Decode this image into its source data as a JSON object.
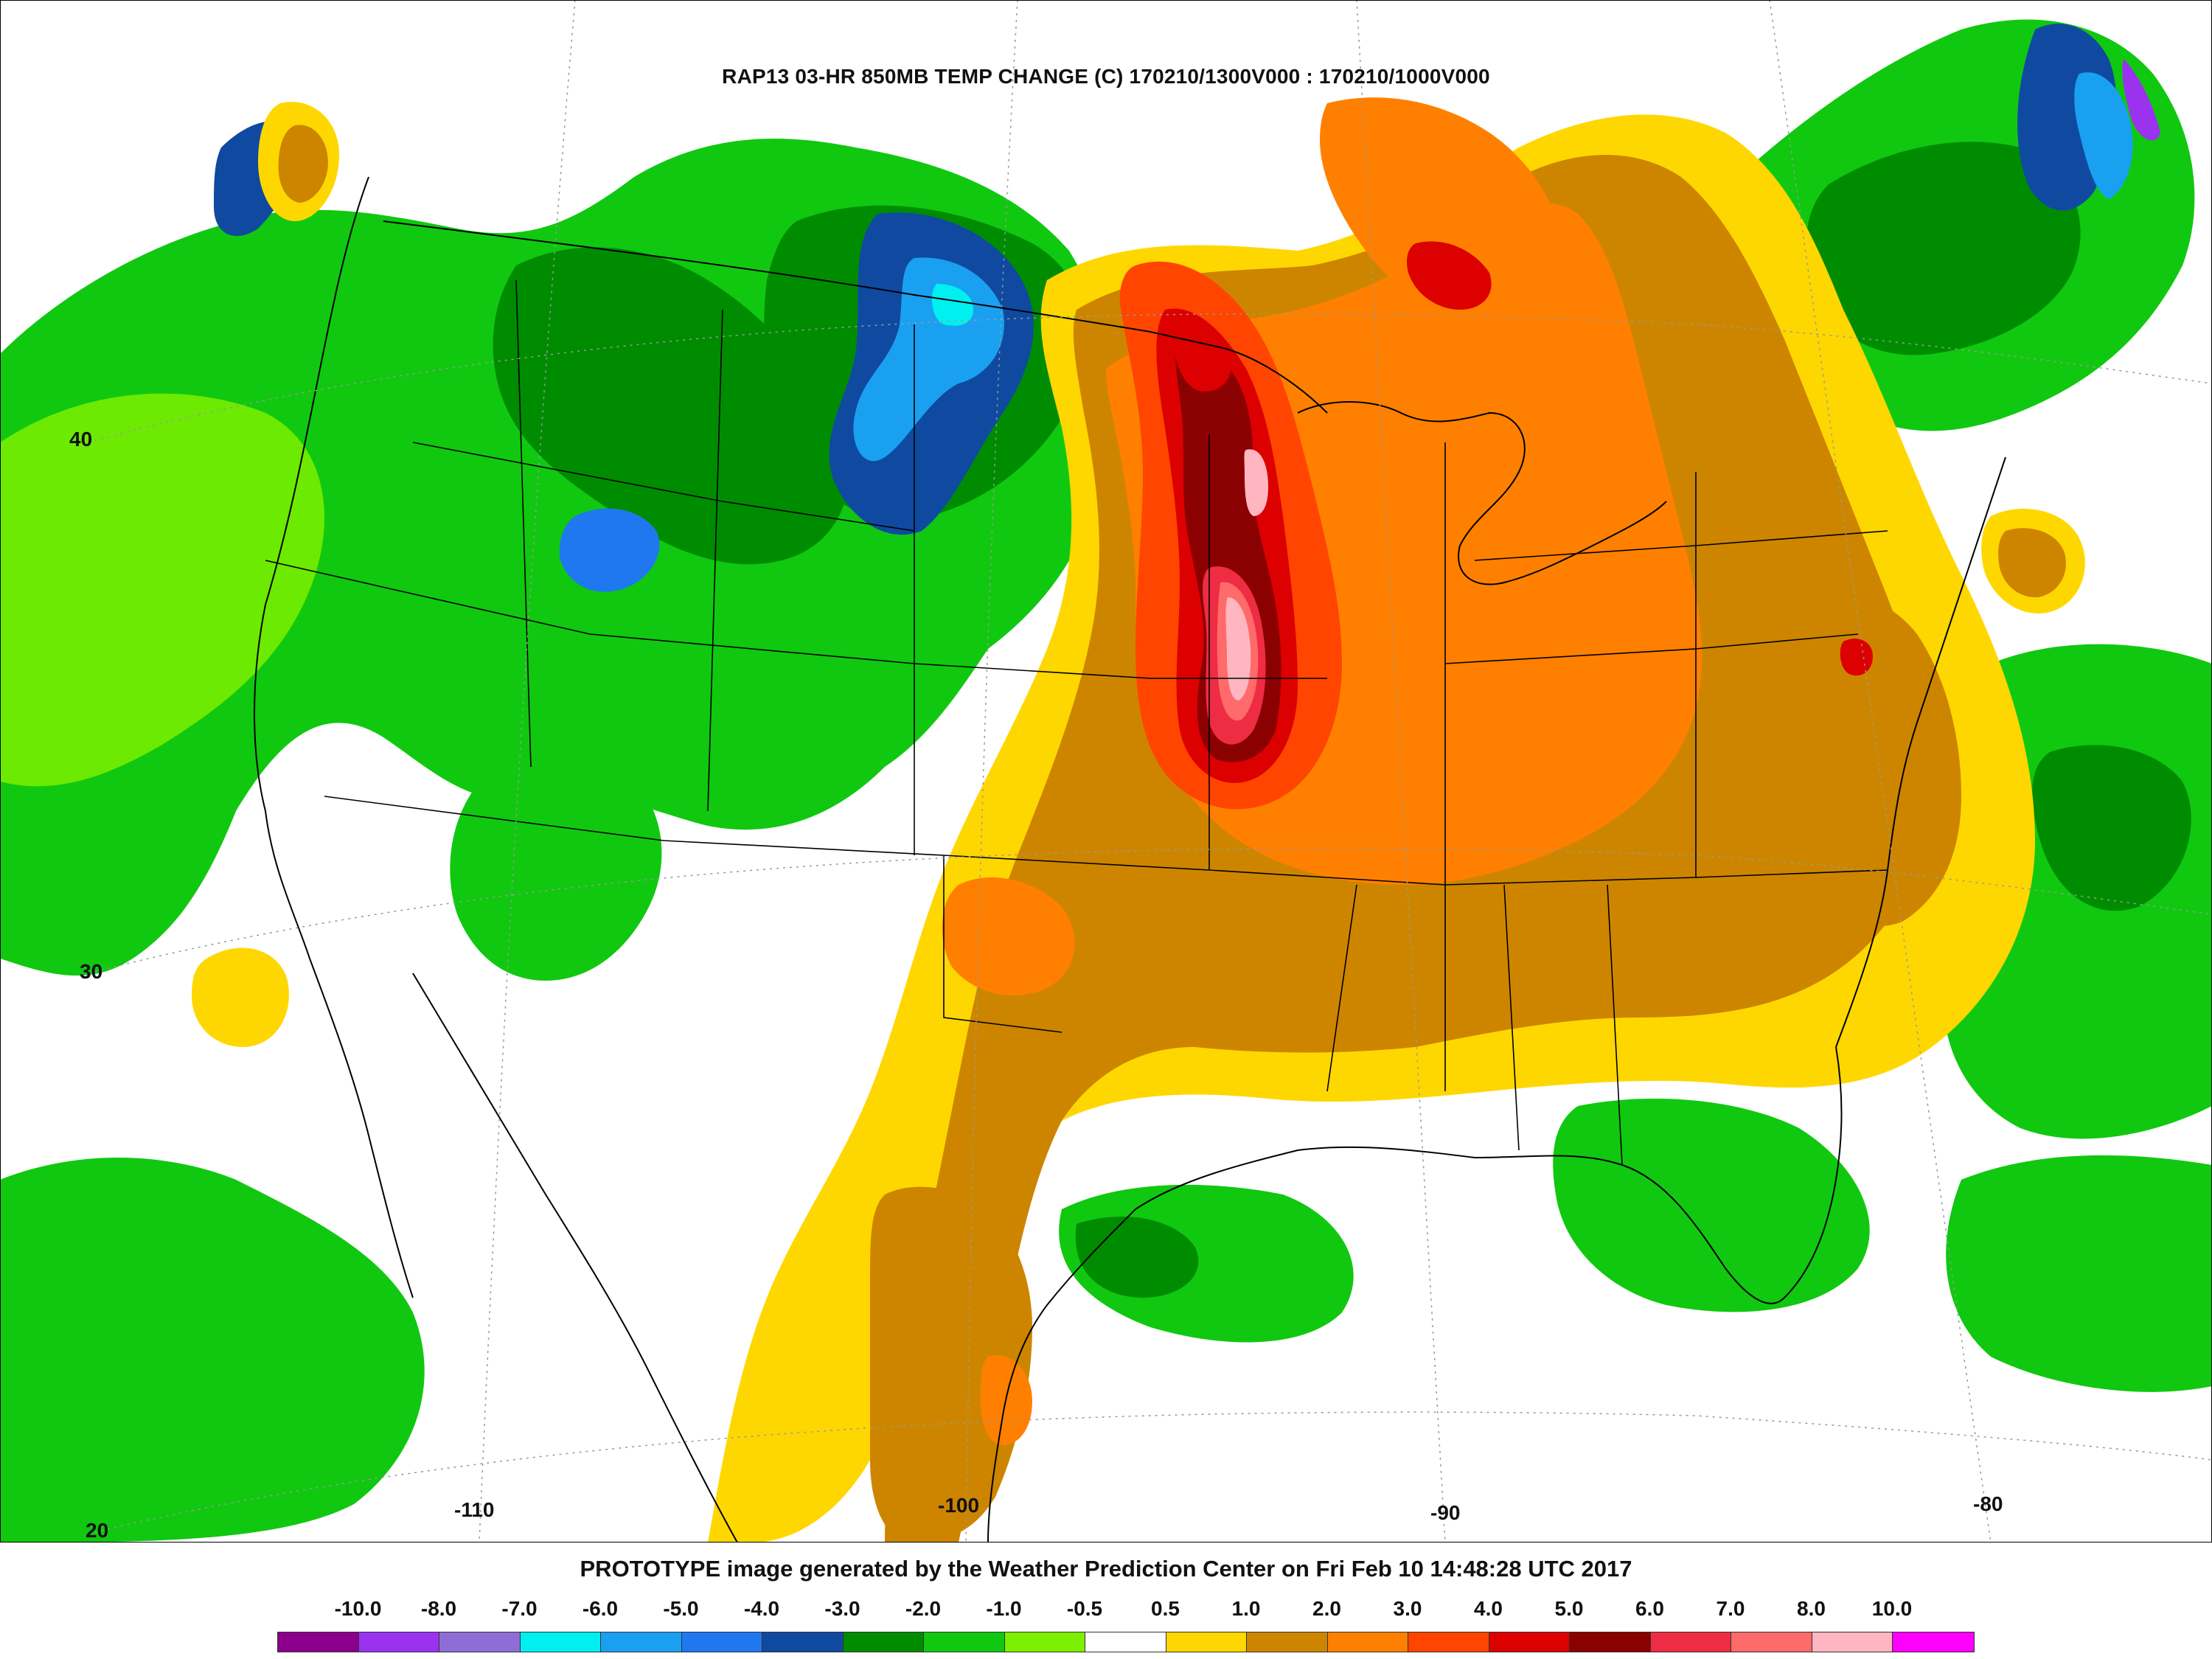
{
  "map": {
    "title": "RAP13 03-HR 850MB TEMP CHANGE (C) 170210/1300V000 : 170210/1000V000",
    "latitude_labels": [
      "40",
      "30",
      "20"
    ],
    "longitude_labels": [
      "-110",
      "-100",
      "-90",
      "-80"
    ]
  },
  "footer": {
    "credit": "PROTOTYPE image generated by the Weather Prediction Center on Fri Feb 10 14:48:28 UTC 2017"
  },
  "legend": {
    "labels": [
      "-10.0",
      "-8.0",
      "-7.0",
      "-6.0",
      "-5.0",
      "-4.0",
      "-3.0",
      "-2.0",
      "-1.0",
      "-0.5",
      "0.5",
      "1.0",
      "2.0",
      "3.0",
      "4.0",
      "5.0",
      "6.0",
      "7.0",
      "8.0",
      "10.0"
    ],
    "colors": [
      "#8b008b",
      "#9a32f0",
      "#8e6ed6",
      "#00f0f0",
      "#1aa0f0",
      "#1f78f0",
      "#0f4aa0",
      "#008c00",
      "#10c810",
      "#7cf000",
      "#ffffff",
      "#ffd700",
      "#cd8500",
      "#ff8000",
      "#ff4500",
      "#dc0000",
      "#8b0000",
      "#ee2c44",
      "#ff6a6a",
      "#ffb6c1",
      "#ff00ff"
    ]
  },
  "palette": {
    "purple": "#8b008b",
    "violet": "#9a32f0",
    "cyan": "#00f0f0",
    "light_blue": "#1aa0f0",
    "blue": "#1f78f0",
    "dark_blue": "#0f4aa0",
    "dark_green": "#008c00",
    "green": "#10c810",
    "lime": "#7cf000",
    "gold": "#ffd700",
    "tan": "#cd8500",
    "orange": "#ff8000",
    "orange_red": "#ff4500",
    "red": "#dc0000",
    "dark_red": "#8b0000",
    "crimson": "#ee2c44",
    "salmon": "#ff6a6a",
    "pink": "#ffb6c1",
    "magenta": "#ff00ff"
  }
}
